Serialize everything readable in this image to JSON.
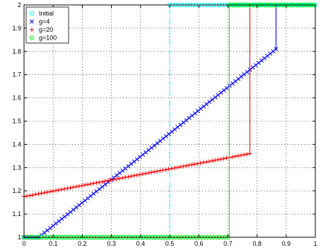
{
  "chart_data": {
    "type": "line",
    "xlim": [
      0,
      1
    ],
    "ylim": [
      1,
      2
    ],
    "xticks": [
      0,
      0.1,
      0.2,
      0.3,
      0.4,
      0.5,
      0.6,
      0.7,
      0.8,
      0.9,
      1
    ],
    "yticks": [
      1,
      1.1,
      1.2,
      1.3,
      1.4,
      1.5,
      1.6,
      1.7,
      1.8,
      1.9,
      2
    ],
    "grid": true,
    "legend_position": "top-left",
    "series": [
      {
        "name": "Initial",
        "color": "#00ffff",
        "marker": "circle",
        "line_style": "dashdot",
        "step": {
          "x_low_end": 0.5,
          "y_low": 1,
          "y_high": 2
        },
        "x_range": [
          0,
          1
        ]
      },
      {
        "name": "g=4",
        "color": "#0000ff",
        "marker": "x",
        "line_style": "solid",
        "points": [
          [
            0,
            1
          ],
          [
            0.05,
            1
          ],
          [
            0.865,
            1.81
          ],
          [
            0.865,
            2
          ],
          [
            1,
            2
          ]
        ]
      },
      {
        "name": "g=20",
        "color": "#ff0000",
        "marker": "plus",
        "line_style": "solid",
        "points": [
          [
            0,
            1.175
          ],
          [
            0.775,
            1.36
          ],
          [
            0.775,
            2
          ],
          [
            1,
            2
          ]
        ]
      },
      {
        "name": "g=100",
        "color": "#00ff00",
        "marker": "diamond",
        "line_style": "solid",
        "step": {
          "x_low_end": 0.705,
          "y_low": 1,
          "y_high": 2
        },
        "x_range": [
          0,
          1
        ]
      }
    ]
  }
}
